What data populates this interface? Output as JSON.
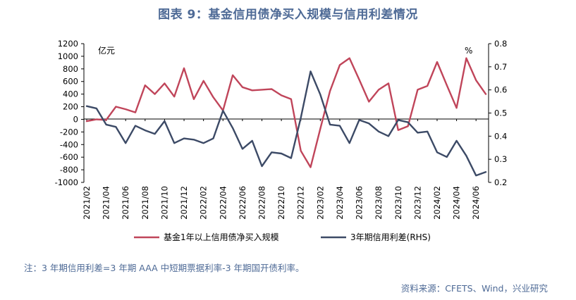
{
  "title": "图表 9：基金信用债净买入规模与信用利差情况",
  "note": "注：3 年期信用利差=3 年期 AAA 中短期票据利率-3 年期国开债利率。",
  "source": "资料来源：CFETS、Wind，兴业研究",
  "chart_data": {
    "type": "line",
    "left_unit": "亿元",
    "right_unit": "%",
    "ylim_left": [
      -1000,
      1200
    ],
    "ylim_right": [
      0.2,
      0.8
    ],
    "yticks_left": [
      -1000,
      -800,
      -600,
      -400,
      -200,
      0,
      200,
      400,
      600,
      800,
      1000,
      1200
    ],
    "yticks_right": [
      0.2,
      0.3,
      0.4,
      0.5,
      0.6,
      0.7,
      0.8
    ],
    "x_tick_labels": [
      "2021/02",
      "2021/04",
      "2021/06",
      "2021/08",
      "2021/10",
      "2021/12",
      "2022/02",
      "2022/04",
      "2022/06",
      "2022/08",
      "2022/10",
      "2022/12",
      "2023/02",
      "2023/04",
      "2023/06",
      "2023/08",
      "2023/10",
      "2023/12",
      "2024/02",
      "2024/04",
      "2024/06"
    ],
    "x_tick_every": 2,
    "series": [
      {
        "name": "基金1年以上信用债净买入规模",
        "axis": "left",
        "color": "#c0455a",
        "values": [
          -30,
          0,
          -10,
          200,
          160,
          110,
          540,
          400,
          570,
          360,
          810,
          320,
          610,
          350,
          140,
          700,
          510,
          460,
          470,
          480,
          380,
          320,
          -500,
          -760,
          -150,
          450,
          860,
          970,
          630,
          280,
          470,
          570,
          -170,
          -110,
          470,
          530,
          910,
          540,
          180,
          970,
          620,
          400
        ]
      },
      {
        "name": "3年期信用利差(RHS)",
        "axis": "right",
        "color": "#3c4a66",
        "values": [
          0.53,
          0.52,
          0.45,
          0.44,
          0.37,
          0.445,
          0.425,
          0.41,
          0.465,
          0.37,
          0.39,
          0.385,
          0.37,
          0.39,
          0.51,
          0.435,
          0.345,
          0.38,
          0.27,
          0.33,
          0.325,
          0.305,
          0.48,
          0.68,
          0.58,
          0.45,
          0.445,
          0.37,
          0.47,
          0.455,
          0.42,
          0.4,
          0.47,
          0.46,
          0.415,
          0.42,
          0.33,
          0.31,
          0.38,
          0.315,
          0.23,
          0.245
        ]
      }
    ]
  }
}
